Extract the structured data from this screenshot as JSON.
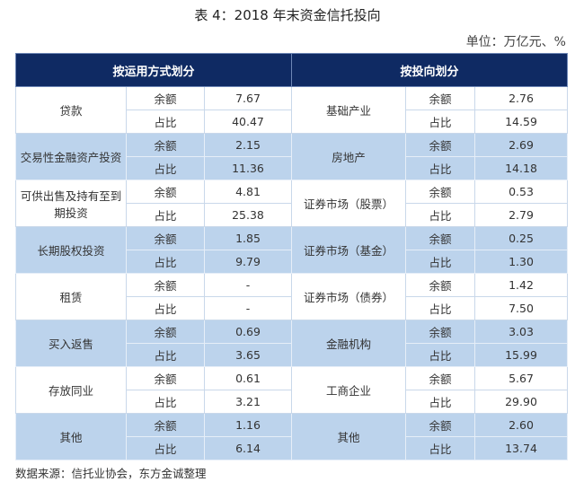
{
  "title": "表 4：2018 年末资金信托投向",
  "unit": "单位：万亿元、%",
  "headers": {
    "left": "按运用方式划分",
    "right": "按投向划分"
  },
  "metric_labels": {
    "balance": "余额",
    "share": "占比"
  },
  "rows": [
    {
      "left": {
        "name": "贷款",
        "balance": "7.67",
        "share": "40.47"
      },
      "right": {
        "name": "基础产业",
        "balance": "2.76",
        "share": "14.59"
      }
    },
    {
      "left": {
        "name": "交易性金融资产投资",
        "balance": "2.15",
        "share": "11.36"
      },
      "right": {
        "name": "房地产",
        "balance": "2.69",
        "share": "14.18"
      }
    },
    {
      "left": {
        "name": "可供出售及持有至到期投资",
        "balance": "4.81",
        "share": "25.38"
      },
      "right": {
        "name": "证券市场（股票）",
        "balance": "0.53",
        "share": "2.79"
      }
    },
    {
      "left": {
        "name": "长期股权投资",
        "balance": "1.85",
        "share": "9.79"
      },
      "right": {
        "name": "证券市场（基金）",
        "balance": "0.25",
        "share": "1.30"
      }
    },
    {
      "left": {
        "name": "租赁",
        "balance": "-",
        "share": "-"
      },
      "right": {
        "name": "证券市场（债券）",
        "balance": "1.42",
        "share": "7.50"
      }
    },
    {
      "left": {
        "name": "买入返售",
        "balance": "0.69",
        "share": "3.65"
      },
      "right": {
        "name": "金融机构",
        "balance": "3.03",
        "share": "15.99"
      }
    },
    {
      "left": {
        "name": "存放同业",
        "balance": "0.61",
        "share": "3.21"
      },
      "right": {
        "name": "工商企业",
        "balance": "5.67",
        "share": "29.90"
      }
    },
    {
      "left": {
        "name": "其他",
        "balance": "1.16",
        "share": "6.14"
      },
      "right": {
        "name": "其他",
        "balance": "2.60",
        "share": "13.74"
      }
    }
  ],
  "source": "数据来源：信托业协会，东方金诚整理",
  "colors": {
    "header": "#0f2a63",
    "shade": "#bcd3ec"
  }
}
